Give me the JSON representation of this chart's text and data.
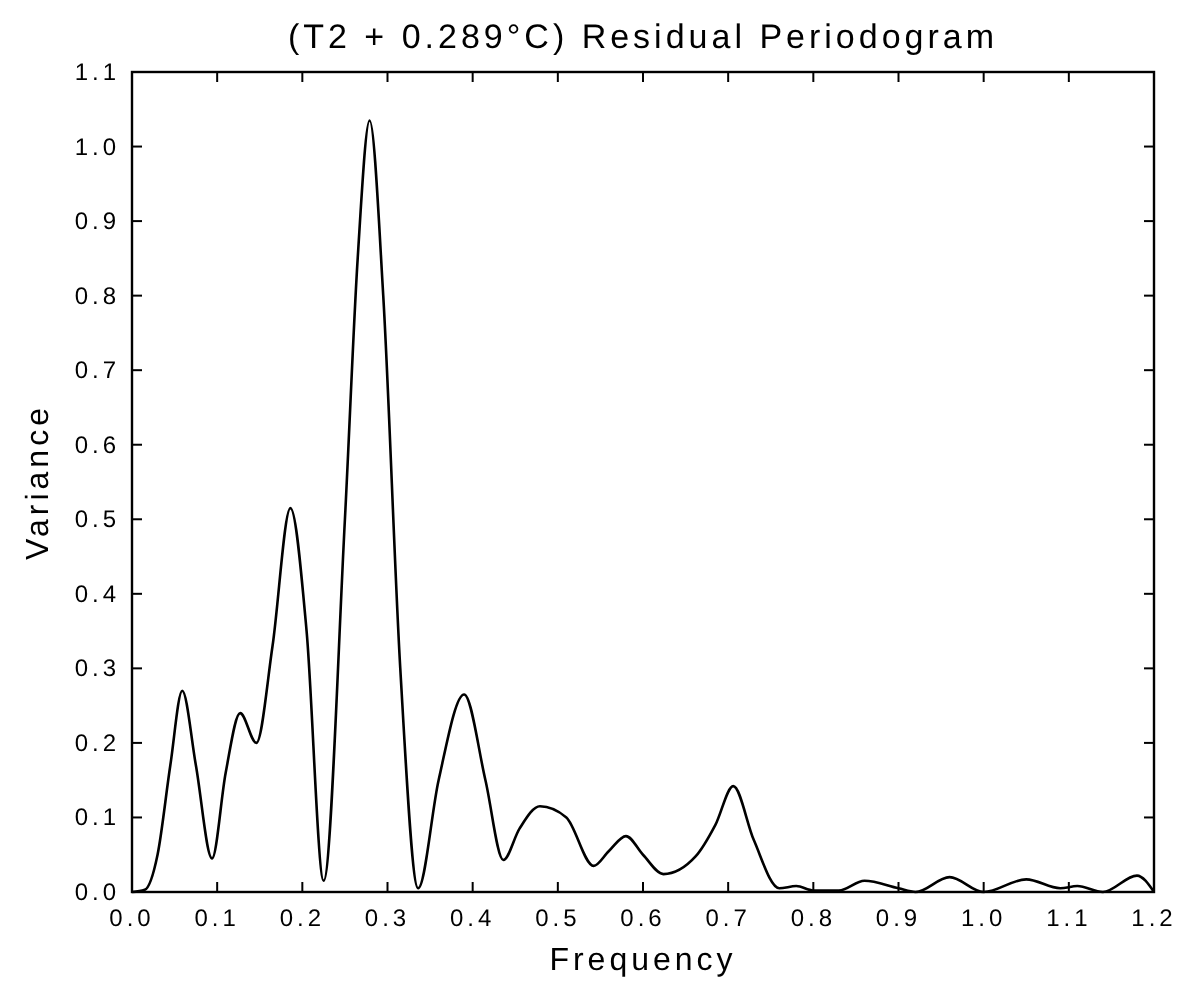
{
  "chart_data": {
    "type": "line",
    "title": "(T2 + 0.289°C) Residual Periodogram",
    "xlabel": "Frequency",
    "ylabel": "Variance",
    "xlim": [
      0,
      1.2
    ],
    "ylim": [
      0,
      1.1
    ],
    "xticks": [
      {
        "value": 0,
        "label": "0.0"
      },
      {
        "value": 0.1,
        "label": "0.1"
      },
      {
        "value": 0.2,
        "label": "0.2"
      },
      {
        "value": 0.3,
        "label": "0.3"
      },
      {
        "value": 0.4,
        "label": "0.4"
      },
      {
        "value": 0.5,
        "label": "0.5"
      },
      {
        "value": 0.6,
        "label": "0.6"
      },
      {
        "value": 0.7,
        "label": "0.7"
      },
      {
        "value": 0.8,
        "label": "0.8"
      },
      {
        "value": 0.9,
        "label": "0.9"
      },
      {
        "value": 1.0,
        "label": "1.0"
      },
      {
        "value": 1.1,
        "label": "1.1"
      },
      {
        "value": 1.2,
        "label": "1.2"
      }
    ],
    "yticks": [
      {
        "value": 0,
        "label": "0.0"
      },
      {
        "value": 0.1,
        "label": "0.1"
      },
      {
        "value": 0.2,
        "label": "0.2"
      },
      {
        "value": 0.3,
        "label": "0.3"
      },
      {
        "value": 0.4,
        "label": "0.4"
      },
      {
        "value": 0.5,
        "label": "0.5"
      },
      {
        "value": 0.6,
        "label": "0.6"
      },
      {
        "value": 0.7,
        "label": "0.7"
      },
      {
        "value": 0.8,
        "label": "0.8"
      },
      {
        "value": 0.9,
        "label": "0.9"
      },
      {
        "value": 1.0,
        "label": "1.0"
      },
      {
        "value": 1.1,
        "label": "1.1"
      }
    ],
    "grid": false,
    "line_style": "solid",
    "series": [
      {
        "color": "#000000",
        "x": [
          0,
          0.015,
          0.03,
          0.045,
          0.059,
          0.075,
          0.094,
          0.11,
          0.127,
          0.146,
          0.165,
          0.186,
          0.205,
          0.225,
          0.25,
          0.265,
          0.279,
          0.295,
          0.315,
          0.336,
          0.36,
          0.39,
          0.415,
          0.436,
          0.455,
          0.479,
          0.51,
          0.542,
          0.56,
          0.58,
          0.6,
          0.624,
          0.662,
          0.685,
          0.706,
          0.73,
          0.76,
          0.78,
          0.8,
          0.83,
          0.86,
          0.9,
          0.92,
          0.96,
          1.0,
          1.05,
          1.09,
          1.11,
          1.14,
          1.18,
          1.2
        ],
        "values": [
          0,
          0.003,
          0.05,
          0.17,
          0.27,
          0.17,
          0.045,
          0.16,
          0.24,
          0.2,
          0.33,
          0.515,
          0.35,
          0.015,
          0.5,
          0.85,
          1.035,
          0.8,
          0.3,
          0.005,
          0.15,
          0.265,
          0.15,
          0.043,
          0.085,
          0.115,
          0.1,
          0.035,
          0.055,
          0.075,
          0.05,
          0.024,
          0.048,
          0.09,
          0.142,
          0.07,
          0.005,
          0.008,
          0.002,
          0.002,
          0.015,
          0.005,
          0,
          0.02,
          0,
          0.017,
          0.005,
          0.008,
          0,
          0.022,
          0
        ]
      }
    ]
  }
}
